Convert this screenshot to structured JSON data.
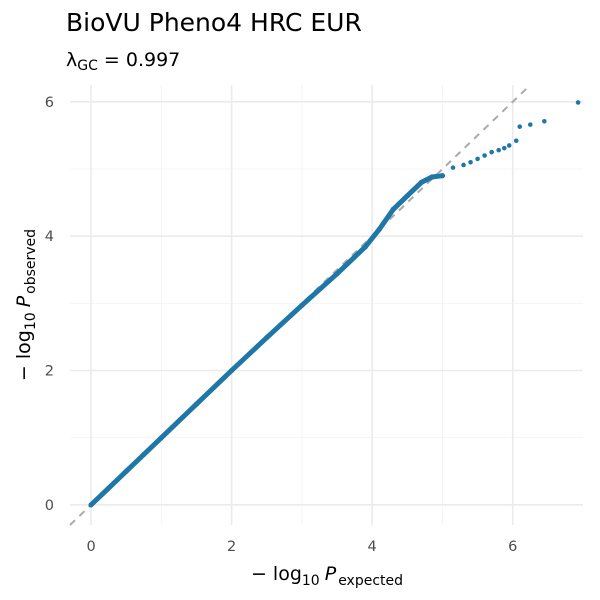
{
  "chart_data": {
    "type": "scatter",
    "title": "BioVU Pheno4 HRC EUR",
    "subtitle": {
      "symbol": "λ",
      "symbol_sub": "GC",
      "equals": " = ",
      "value": "0.997"
    },
    "xlabel": {
      "prefix": "− log",
      "base": "10",
      "var": "P",
      "sub": "expected"
    },
    "ylabel": {
      "prefix": "− log",
      "base": "10",
      "var": "P",
      "sub": "observed"
    },
    "xlim": [
      -0.3,
      7.0
    ],
    "ylim": [
      -0.3,
      6.25
    ],
    "x_ticks": [
      0,
      2,
      4,
      6
    ],
    "y_ticks": [
      0,
      2,
      4,
      6
    ],
    "grid": true,
    "reference_line": "y = x",
    "colors": {
      "points": "#1f77a8",
      "reference_line": "#aaaaaa",
      "grid_major": "#ebebeb",
      "grid_minor": "#f4f4f4"
    },
    "points": [
      [
        0.0,
        0.0
      ],
      [
        0.25,
        0.25
      ],
      [
        0.5,
        0.5
      ],
      [
        0.75,
        0.75
      ],
      [
        1.0,
        1.0
      ],
      [
        1.5,
        1.5
      ],
      [
        2.0,
        2.0
      ],
      [
        2.5,
        2.49
      ],
      [
        3.0,
        2.97
      ],
      [
        3.5,
        3.44
      ],
      [
        3.9,
        3.84
      ],
      [
        4.1,
        4.1
      ],
      [
        4.3,
        4.4
      ],
      [
        4.5,
        4.6
      ],
      [
        4.7,
        4.8
      ],
      [
        4.85,
        4.88
      ],
      [
        5.0,
        4.9
      ],
      [
        5.15,
        5.02
      ],
      [
        5.3,
        5.06
      ],
      [
        5.4,
        5.1
      ],
      [
        5.5,
        5.15
      ],
      [
        5.6,
        5.2
      ],
      [
        5.7,
        5.25
      ],
      [
        5.8,
        5.28
      ],
      [
        5.88,
        5.31
      ],
      [
        5.95,
        5.35
      ],
      [
        6.05,
        5.42
      ],
      [
        6.1,
        5.63
      ],
      [
        6.25,
        5.66
      ],
      [
        6.45,
        5.71
      ],
      [
        6.93,
        5.99
      ]
    ]
  }
}
